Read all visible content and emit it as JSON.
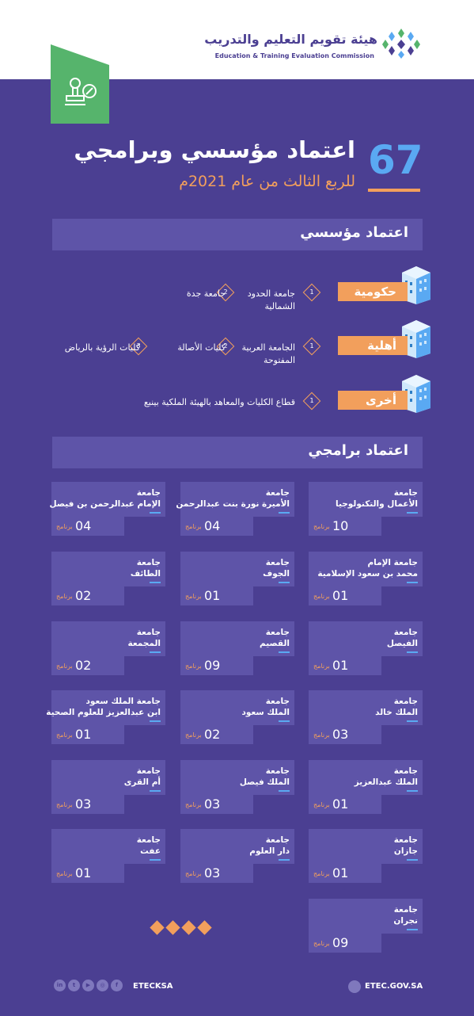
{
  "header": {
    "logo_ar": "هيئة تقويم التعليم والتدريب",
    "logo_en": "Education & Training Evaluation Commission"
  },
  "hero": {
    "number": "67",
    "title": "اعتماد مؤسسي وبرامجي",
    "subtitle": "للربع الثالث من عام 2021م"
  },
  "institutional": {
    "heading": "اعتماد مؤسسي",
    "categories": [
      {
        "label": "حكومية",
        "items": [
          {
            "num": "1",
            "name": "جامعة الحدود\nالشمالية"
          },
          {
            "num": "2",
            "name": "جامعة جدة"
          }
        ]
      },
      {
        "label": "أهلية",
        "items": [
          {
            "num": "1",
            "name": "الجامعة العربية\nالمفتوحة"
          },
          {
            "num": "2",
            "name": "كليات الأصالة"
          },
          {
            "num": "3",
            "name": "كليات الرؤية بالرياض"
          }
        ]
      },
      {
        "label": "أخرى",
        "items": [
          {
            "num": "1",
            "name": "قطاع الكليات والمعاهد بالهيئة الملكية بينبع"
          }
        ]
      }
    ]
  },
  "programs": {
    "heading": "اعتماد برامجي",
    "unit": "برنامج",
    "cards": [
      {
        "name": "جامعة\nالأعمال والتكنولوجيا",
        "count": "10"
      },
      {
        "name": "جامعة\nالأميرة نورة بنت عبدالرحمن",
        "count": "04"
      },
      {
        "name": "جامعة\nالإمام عبدالرحمن بن فيصل",
        "count": "04"
      },
      {
        "name": "جامعة الإمام\nمحمد بن سعود الإسلامية",
        "count": "01"
      },
      {
        "name": "جامعة\nالجوف",
        "count": "01"
      },
      {
        "name": "جامعة\nالطائف",
        "count": "02"
      },
      {
        "name": "جامعة\nالفيصل",
        "count": "01"
      },
      {
        "name": "جامعة\nالقصيم",
        "count": "09"
      },
      {
        "name": "جامعة\nالمجمعة",
        "count": "02"
      },
      {
        "name": "جامعة\nالملك خالد",
        "count": "03"
      },
      {
        "name": "جامعة\nالملك سعود",
        "count": "02"
      },
      {
        "name": "جامعة الملك سعود\nابن عبدالعزيز للعلوم الصحية",
        "count": "01"
      },
      {
        "name": "جامعة\nالملك عبدالعزيز",
        "count": "01"
      },
      {
        "name": "جامعة\nالملك فيصل",
        "count": "03"
      },
      {
        "name": "جامعة\nأم القرى",
        "count": "03"
      },
      {
        "name": "جامعة\nجازان",
        "count": "01"
      },
      {
        "name": "جامعة\nدار العلوم",
        "count": "03"
      },
      {
        "name": "جامعة\nعفت",
        "count": "01"
      },
      {
        "name": "جامعة\nنجران",
        "count": "09"
      }
    ]
  },
  "footer": {
    "handle": "ETECKSA",
    "site": "ETEC.GOV.SA",
    "social_icons": [
      "linkedin-icon",
      "twitter-icon",
      "youtube-icon",
      "instagram-icon",
      "facebook-icon"
    ]
  }
}
